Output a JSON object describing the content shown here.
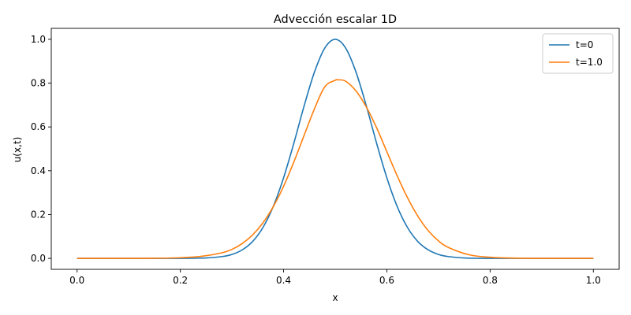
{
  "chart_data": {
    "type": "line",
    "title": "Advección escalar 1D",
    "xlabel": "x",
    "ylabel": "u(x,t)",
    "xlim": [
      -0.05,
      1.05
    ],
    "ylim": [
      -0.05,
      1.05
    ],
    "xticks": [
      0.0,
      0.2,
      0.4,
      0.6,
      0.8,
      1.0
    ],
    "xtick_labels": [
      "0.0",
      "0.2",
      "0.4",
      "0.6",
      "0.8",
      "1.0"
    ],
    "yticks": [
      0.0,
      0.2,
      0.4,
      0.6,
      0.8,
      1.0
    ],
    "ytick_labels": [
      "0.0",
      "0.2",
      "0.4",
      "0.6",
      "0.8",
      "1.0"
    ],
    "grid": false,
    "legend_position": "top-right",
    "series": [
      {
        "name": "t=0",
        "color": "#1f77b4",
        "x": [
          0.0,
          0.1,
          0.2,
          0.25,
          0.28,
          0.3,
          0.32,
          0.34,
          0.36,
          0.38,
          0.4,
          0.42,
          0.44,
          0.46,
          0.48,
          0.5,
          0.52,
          0.54,
          0.56,
          0.58,
          0.6,
          0.62,
          0.64,
          0.66,
          0.68,
          0.7,
          0.72,
          0.75,
          0.8,
          0.9,
          1.0
        ],
        "y": [
          0.0,
          0.0,
          0.0,
          0.002,
          0.008,
          0.018,
          0.039,
          0.077,
          0.141,
          0.237,
          0.368,
          0.527,
          0.698,
          0.852,
          0.961,
          1.0,
          0.961,
          0.852,
          0.698,
          0.527,
          0.368,
          0.237,
          0.141,
          0.077,
          0.039,
          0.018,
          0.008,
          0.002,
          0.0,
          0.0,
          0.0
        ]
      },
      {
        "name": "t=1.0",
        "color": "#ff7f0e",
        "x": [
          0.0,
          0.1,
          0.15,
          0.2,
          0.24,
          0.28,
          0.3,
          0.32,
          0.34,
          0.36,
          0.38,
          0.4,
          0.42,
          0.44,
          0.46,
          0.48,
          0.5,
          0.505,
          0.52,
          0.54,
          0.56,
          0.58,
          0.6,
          0.62,
          0.64,
          0.66,
          0.68,
          0.7,
          0.72,
          0.76,
          0.8,
          0.85,
          0.9,
          1.0
        ],
        "y": [
          0.0,
          0.0,
          0.0005,
          0.003,
          0.009,
          0.025,
          0.041,
          0.068,
          0.107,
          0.162,
          0.236,
          0.329,
          0.441,
          0.563,
          0.684,
          0.784,
          0.813,
          0.815,
          0.809,
          0.765,
          0.692,
          0.597,
          0.487,
          0.377,
          0.277,
          0.193,
          0.127,
          0.08,
          0.049,
          0.016,
          0.005,
          0.001,
          0.0,
          0.0
        ]
      }
    ]
  }
}
